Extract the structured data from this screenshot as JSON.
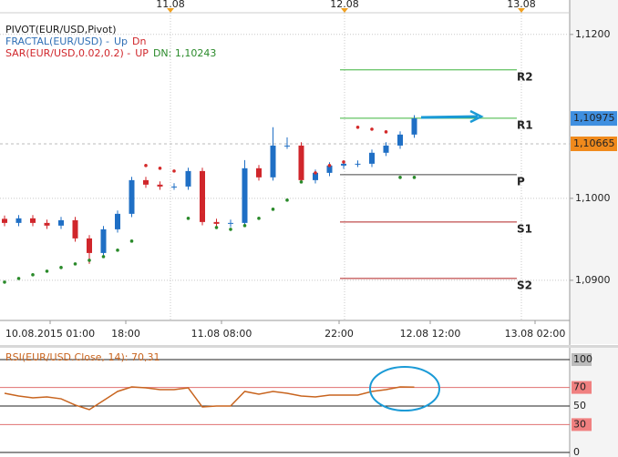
{
  "chart_data": {
    "type": "candlestick",
    "legend": [
      [
        {
          "text": "PIVOT(EUR/USD,Pivot)",
          "color": "#1a1a1a"
        }
      ],
      [
        {
          "text": "FRACTAL(EUR/USD) - ",
          "color": "#2f6fb5"
        },
        {
          "text": "Up",
          "color": "#2f6fb5"
        },
        {
          "text": "Dn",
          "color": "#d0262b"
        }
      ],
      [
        {
          "text": "SAR(EUR/USD,0.02,0.2) - ",
          "color": "#d0262b"
        },
        {
          "text": "UP",
          "color": "#d0262b"
        },
        {
          "text": "DN: 1,10243",
          "color": "#2a8a2a"
        }
      ]
    ],
    "date_labels": [
      "11.08",
      "12.08",
      "13.08"
    ],
    "time_labels": [
      "10.08.2015 01:00",
      "18:00",
      "11.08 08:00",
      "22:00",
      "12.08 12:00",
      "13.08 02:00"
    ],
    "open": [
      1.0975,
      1.097,
      1.09756,
      1.097,
      1.09667,
      1.09733,
      1.09511,
      1.09333,
      1.09622,
      1.09811,
      1.10222,
      1.10167,
      1.10144,
      1.10144,
      1.10333,
      1.09711,
      1.09689,
      1.097,
      1.10367,
      1.10256,
      1.10644,
      1.10644,
      1.10222,
      1.10311,
      1.104,
      1.10422,
      1.10422,
      1.10556,
      1.10644,
      1.10778
    ],
    "high": [
      1.0979,
      1.09796,
      1.09796,
      1.0974,
      1.09773,
      1.09773,
      1.09551,
      1.09662,
      1.09851,
      1.10262,
      1.10262,
      1.10207,
      1.10184,
      1.10373,
      1.10373,
      1.09751,
      1.0974,
      1.10467,
      1.10407,
      1.10867,
      1.10744,
      1.10684,
      1.10351,
      1.1044,
      1.10462,
      1.10462,
      1.10596,
      1.10684,
      1.10818,
      1.11015
    ],
    "low": [
      1.0966,
      1.0966,
      1.0966,
      1.09627,
      1.09627,
      1.09471,
      1.092,
      1.09293,
      1.09582,
      1.09771,
      1.10127,
      1.10104,
      1.10104,
      1.10104,
      1.09671,
      1.09649,
      1.09649,
      1.0966,
      1.10216,
      1.10216,
      1.10604,
      1.10182,
      1.10182,
      1.10271,
      1.1036,
      1.10382,
      1.10382,
      1.10516,
      1.10604,
      1.10738
    ],
    "close": [
      1.097,
      1.09756,
      1.097,
      1.09667,
      1.09733,
      1.09511,
      1.09333,
      1.09622,
      1.09811,
      1.10222,
      1.10167,
      1.10144,
      1.10144,
      1.10333,
      1.09711,
      1.09689,
      1.097,
      1.10367,
      1.10256,
      1.10644,
      1.10644,
      1.10222,
      1.10311,
      1.104,
      1.10422,
      1.10422,
      1.10556,
      1.10644,
      1.10778,
      1.10975
    ],
    "up_color": "#1f6fc5",
    "down_color": "#d0262b",
    "ylim": [
      1.0851,
      1.1242
    ],
    "yticks": [
      {
        "value": 1.09,
        "label": "1,0900"
      },
      {
        "value": 1.1,
        "label": "1,1000"
      },
      {
        "value": 1.12,
        "label": "1,1200"
      }
    ],
    "grid": true,
    "pivots": [
      {
        "name": "R2",
        "value": 1.11567,
        "color": "#3cb43c"
      },
      {
        "name": "R1",
        "value": 1.10978,
        "color": "#3cb43c"
      },
      {
        "name": "P",
        "value": 1.10289,
        "color": "#444444"
      },
      {
        "name": "S1",
        "value": 1.09711,
        "color": "#b02020"
      },
      {
        "name": "S2",
        "value": 1.09022,
        "color": "#b02020"
      }
    ],
    "price_markers": [
      {
        "value": 1.10975,
        "label": "1,10975",
        "color": "#3f8fe0"
      },
      {
        "value": 1.10665,
        "label": "1,10665",
        "color": "#f08a1c"
      }
    ],
    "sar": {
      "values": [
        1.08978,
        1.09022,
        1.09067,
        1.09111,
        1.09156,
        1.092,
        1.09244,
        1.09289,
        1.09367,
        1.09478,
        1.104,
        1.10367,
        1.10333,
        1.09756,
        1.09833,
        1.09644,
        1.09622,
        1.09667,
        1.09756,
        1.09867,
        1.09978,
        1.102,
        1.10311,
        1.104,
        1.10444,
        1.10867,
        1.10844,
        1.10811,
        1.10256,
        1.10256
      ],
      "up_color": "#2a8a2a",
      "down_color": "#d42a2a"
    },
    "rsi": {
      "title": "RSI(EUR/USD.Close, 14): 70,31",
      "values": [
        63.7,
        60.8,
        58.8,
        59.8,
        57.8,
        51,
        46.1,
        55.9,
        65.7,
        70.6,
        69.6,
        67.6,
        67.6,
        69.6,
        49,
        50,
        50,
        65.7,
        62.7,
        65.7,
        63.7,
        60.8,
        59.8,
        61.8,
        61.8,
        61.8,
        65.7,
        67.6,
        70.6,
        70.31
      ],
      "color": "#c8641e",
      "ylim": [
        0,
        100
      ],
      "yticks": [
        100,
        70,
        50,
        30,
        0
      ]
    }
  }
}
